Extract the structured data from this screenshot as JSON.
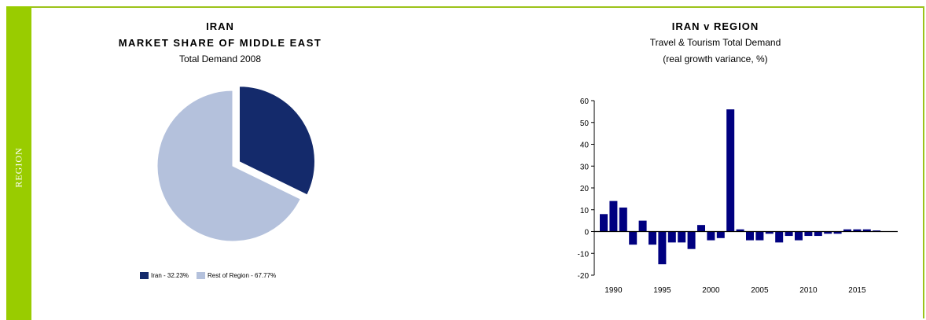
{
  "side_label": "REGION",
  "colors": {
    "accent": "#99cc00",
    "iran": "#142a6b",
    "rest": "#b4c1dc",
    "bar": "#000080"
  },
  "chart_data": [
    {
      "type": "pie",
      "title": "IRAN",
      "subtitle": "MARKET SHARE OF MIDDLE EAST",
      "note": "Total Demand 2008",
      "slices": [
        {
          "name": "Iran - 32.23%",
          "value": 32.23
        },
        {
          "name": "Rest of Region - 67.77%",
          "value": 67.77
        }
      ],
      "exploded": "Iran",
      "legend": "bottom"
    },
    {
      "type": "bar",
      "title": "IRAN v REGION",
      "subtitle": "Travel & Tourism Total Demand",
      "ylabel": "(real growth variance, %)",
      "x": [
        1989,
        1990,
        1991,
        1992,
        1993,
        1994,
        1995,
        1996,
        1997,
        1998,
        1999,
        2000,
        2001,
        2002,
        2003,
        2004,
        2005,
        2006,
        2007,
        2008,
        2009,
        2010,
        2011,
        2012,
        2013,
        2014,
        2015,
        2016,
        2017
      ],
      "values": [
        8,
        14,
        11,
        -6,
        5,
        -6,
        -15,
        -5,
        -5,
        -8,
        3,
        -4,
        -3,
        56,
        1,
        -4,
        -4,
        -1,
        -5,
        -2,
        -4,
        -2,
        -2,
        -1,
        -1,
        1,
        1,
        1,
        0.5
      ],
      "xticks": [
        "1990",
        "1995",
        "2000",
        "2005",
        "2010",
        "2015"
      ],
      "yticks": [
        "60",
        "50",
        "40",
        "30",
        "20",
        "10",
        "0",
        "-10",
        "-20"
      ],
      "ylim": [
        -20,
        60
      ],
      "grid": false
    }
  ]
}
